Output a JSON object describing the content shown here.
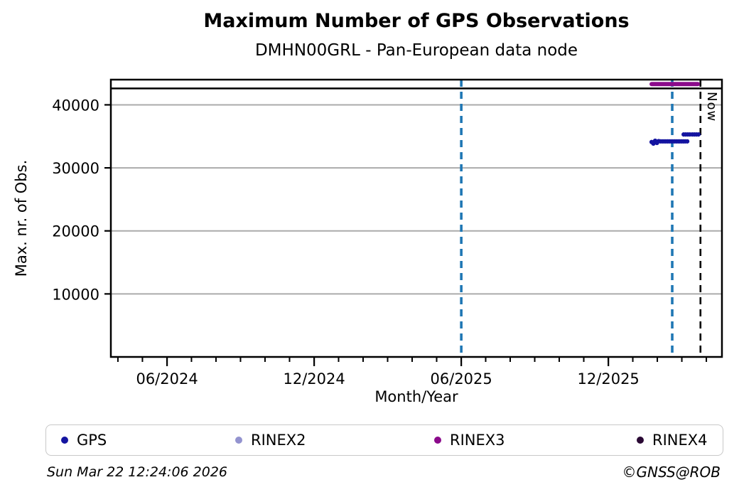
{
  "chart_data": {
    "type": "scatter",
    "title": "Maximum Number of GPS Observations",
    "subtitle": "DMHN00GRL - Pan-European data node",
    "xlabel": "Month/Year",
    "ylabel": "Max. nr. of Obs.",
    "xlim": [
      2024.226,
      2026.303
    ],
    "ylim": [
      0,
      44000
    ],
    "grid": true,
    "grid_color": "#ababab",
    "yticks": [
      10000,
      20000,
      30000,
      40000
    ],
    "ytick_labels": [
      "10000",
      "20000",
      "30000",
      "40000"
    ],
    "xticks": [
      {
        "x": 2024.417,
        "label": "06/2024"
      },
      {
        "x": 2024.917,
        "label": "12/2024"
      },
      {
        "x": 2025.417,
        "label": "06/2025"
      },
      {
        "x": 2025.917,
        "label": "12/2025"
      }
    ],
    "minor_xticks": {
      "start": 2024.25,
      "step": 0.0833333,
      "end": 2026.26
    },
    "reference_lines": {
      "max_observations_line": {
        "y": 42600,
        "color": "#000000",
        "style": "solid"
      },
      "vlines": [
        {
          "x": 2025.417,
          "color": "#1f77b4",
          "style": "dashed",
          "label": ""
        },
        {
          "x": 2026.134,
          "color": "#1f77b4",
          "style": "dashed",
          "label": ""
        },
        {
          "x": 2026.23,
          "color": "#000000",
          "style": "dashed",
          "label": "Now"
        }
      ]
    },
    "now_label": "Now",
    "legend_position": "bottom",
    "series": [
      {
        "name": "GPS",
        "color": "#1414a0",
        "points": [
          [
            2026.064,
            34100
          ],
          [
            2026.07,
            33850
          ],
          [
            2026.076,
            34300
          ],
          [
            2026.082,
            33950
          ],
          [
            2026.088,
            34250
          ],
          [
            2026.094,
            34200
          ],
          [
            2026.1,
            34200
          ],
          [
            2026.106,
            34200
          ],
          [
            2026.112,
            34200
          ],
          [
            2026.118,
            34200
          ],
          [
            2026.124,
            34200
          ],
          [
            2026.13,
            34200
          ],
          [
            2026.136,
            34200
          ],
          [
            2026.142,
            34200
          ],
          [
            2026.148,
            34200
          ],
          [
            2026.154,
            34200
          ],
          [
            2026.16,
            34200
          ],
          [
            2026.166,
            34200
          ],
          [
            2026.172,
            34200
          ],
          [
            2026.178,
            34200
          ],
          [
            2026.185,
            34200
          ],
          [
            2026.173,
            35300
          ],
          [
            2026.18,
            35300
          ],
          [
            2026.187,
            35300
          ],
          [
            2026.194,
            35300
          ],
          [
            2026.202,
            35300
          ],
          [
            2026.209,
            35300
          ],
          [
            2026.216,
            35300
          ],
          [
            2026.223,
            35300
          ]
        ],
        "segments": []
      },
      {
        "name": "RINEX2",
        "color": "#9393cf",
        "points": [],
        "segments": []
      },
      {
        "name": "RINEX3",
        "color": "#8b0a8b",
        "points": [],
        "segments": [
          {
            "x1": 2026.064,
            "x2": 2026.221,
            "y": 43300,
            "width": 6
          }
        ]
      },
      {
        "name": "RINEX4",
        "color": "#2a0934",
        "points": [],
        "segments": []
      }
    ]
  },
  "footer": {
    "timestamp": "Sun Mar 22 12:24:06 2026",
    "copyright": "©GNSS@ROB"
  }
}
